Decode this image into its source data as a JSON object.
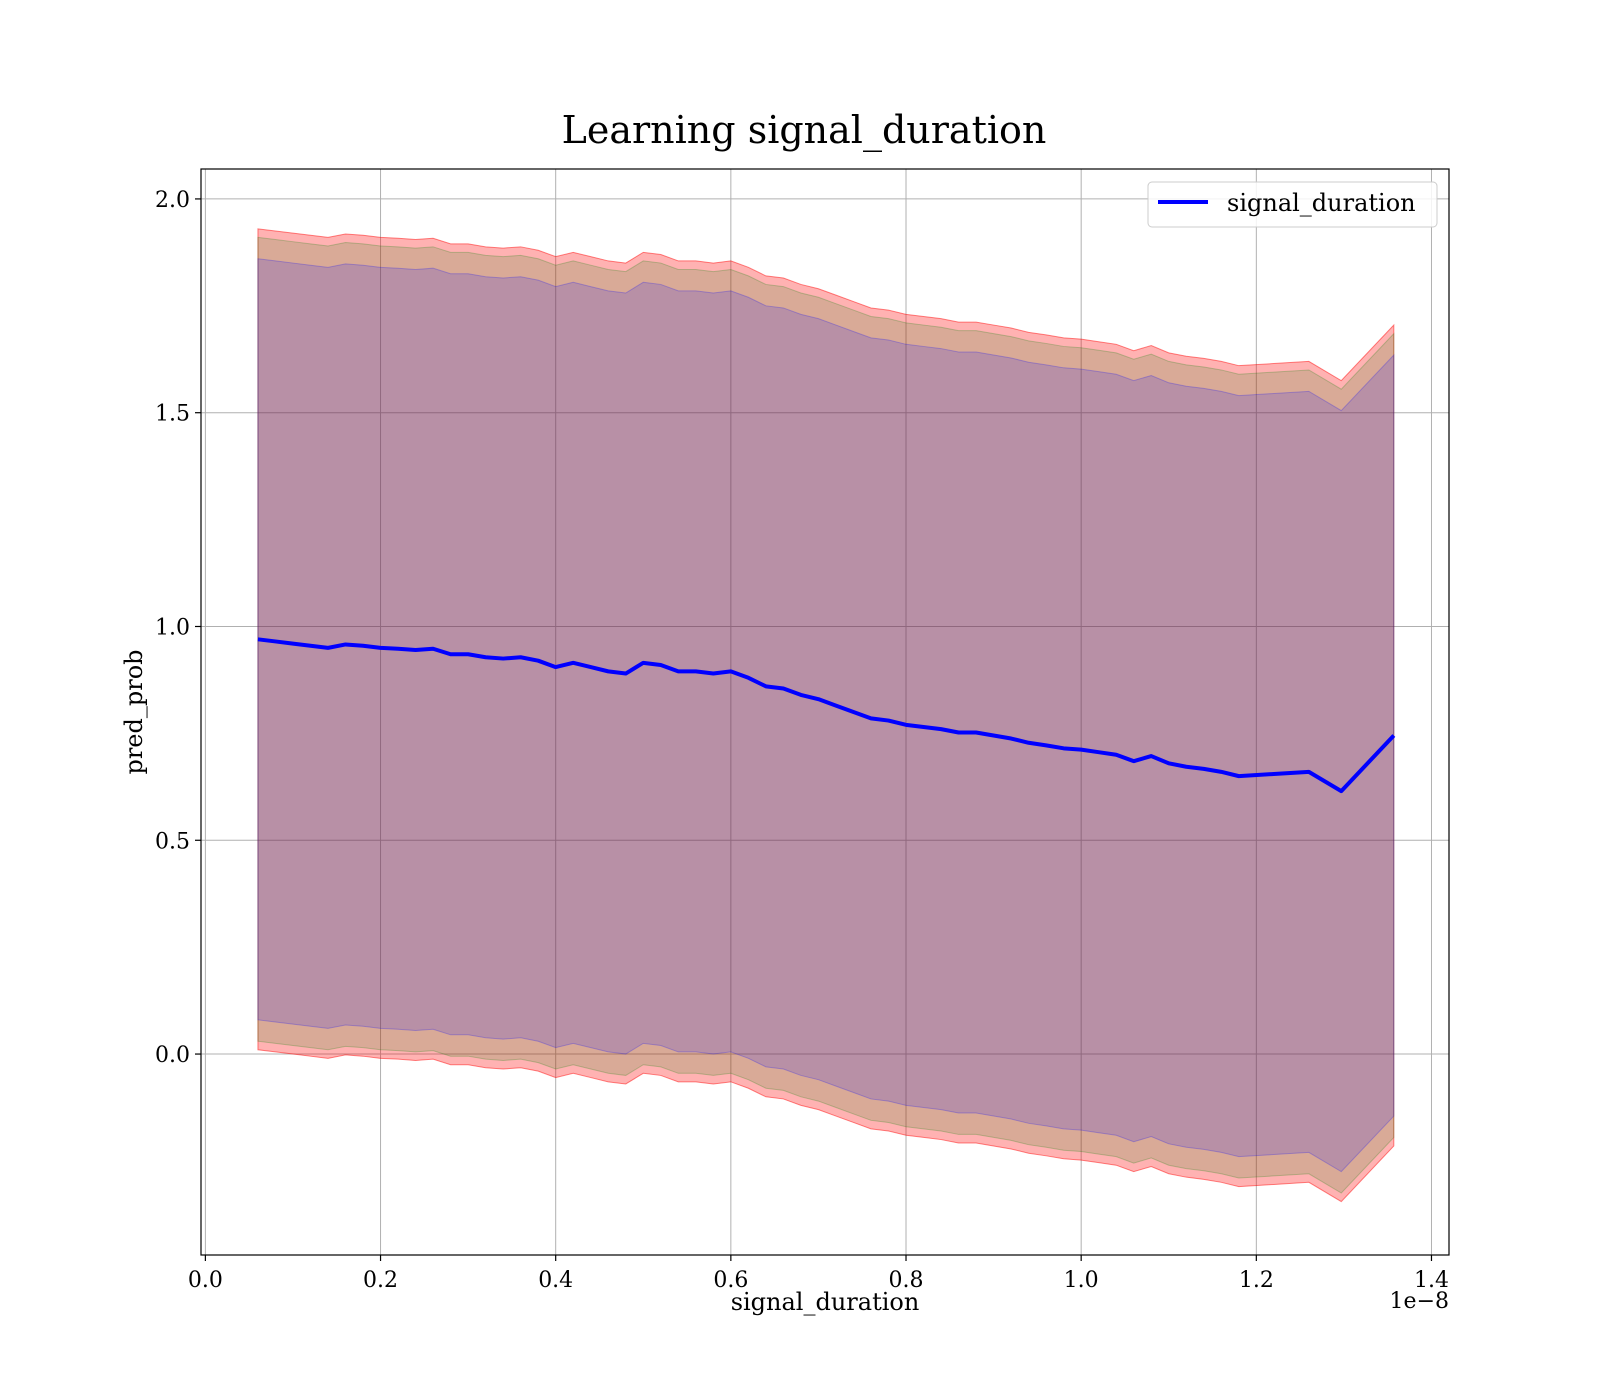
{
  "chart_data": {
    "type": "line",
    "title": "Learning signal_duration",
    "xlabel": "signal_duration",
    "ylabel": "pred_prob",
    "x_offset_label": "1e−8",
    "xlim": [
      -0.005,
      1.42
    ],
    "ylim": [
      -0.47,
      2.07
    ],
    "x_ticks": [
      0.0,
      0.2,
      0.4,
      0.6,
      0.8,
      1.0,
      1.2,
      1.4
    ],
    "x_tick_labels": [
      "0.0",
      "0.2",
      "0.4",
      "0.6",
      "0.8",
      "1.0",
      "1.2",
      "1.4"
    ],
    "y_ticks": [
      0.0,
      0.5,
      1.0,
      1.5,
      2.0
    ],
    "y_tick_labels": [
      "0.0",
      "0.5",
      "1.0",
      "1.5",
      "2.0"
    ],
    "grid": true,
    "legend_position": "top-right",
    "x": [
      0.06,
      0.08,
      0.1,
      0.12,
      0.14,
      0.16,
      0.18,
      0.2,
      0.22,
      0.24,
      0.26,
      0.28,
      0.3,
      0.32,
      0.34,
      0.36,
      0.38,
      0.4,
      0.42,
      0.44,
      0.46,
      0.48,
      0.5,
      0.52,
      0.54,
      0.56,
      0.58,
      0.6,
      0.62,
      0.64,
      0.66,
      0.68,
      0.7,
      0.72,
      0.74,
      0.76,
      0.78,
      0.8,
      0.82,
      0.84,
      0.86,
      0.88,
      0.9,
      0.92,
      0.94,
      0.96,
      0.98,
      1.0,
      1.02,
      1.04,
      1.06,
      1.08,
      1.1,
      1.12,
      1.14,
      1.16,
      1.18,
      1.22,
      1.26,
      1.297,
      1.357
    ],
    "series": [
      {
        "name": "signal_duration",
        "color": "#0000ff",
        "values": [
          0.97,
          0.965,
          0.96,
          0.955,
          0.95,
          0.958,
          0.955,
          0.95,
          0.948,
          0.945,
          0.948,
          0.935,
          0.935,
          0.928,
          0.925,
          0.928,
          0.92,
          0.905,
          0.915,
          0.905,
          0.895,
          0.89,
          0.915,
          0.91,
          0.895,
          0.895,
          0.89,
          0.895,
          0.88,
          0.86,
          0.855,
          0.84,
          0.83,
          0.815,
          0.8,
          0.785,
          0.78,
          0.77,
          0.765,
          0.76,
          0.752,
          0.752,
          0.745,
          0.738,
          0.728,
          0.722,
          0.715,
          0.712,
          0.706,
          0.7,
          0.685,
          0.697,
          0.68,
          0.672,
          0.667,
          0.66,
          0.65,
          0.655,
          0.66,
          0.615,
          0.745
        ]
      }
    ],
    "bands": [
      {
        "color": "#ff0000",
        "opacity": 0.3,
        "half_width": 0.96
      },
      {
        "color": "#008000",
        "opacity": 0.15,
        "half_width": 0.94
      },
      {
        "color": "#0000ff",
        "opacity": 0.15,
        "half_width": 0.89
      }
    ]
  }
}
